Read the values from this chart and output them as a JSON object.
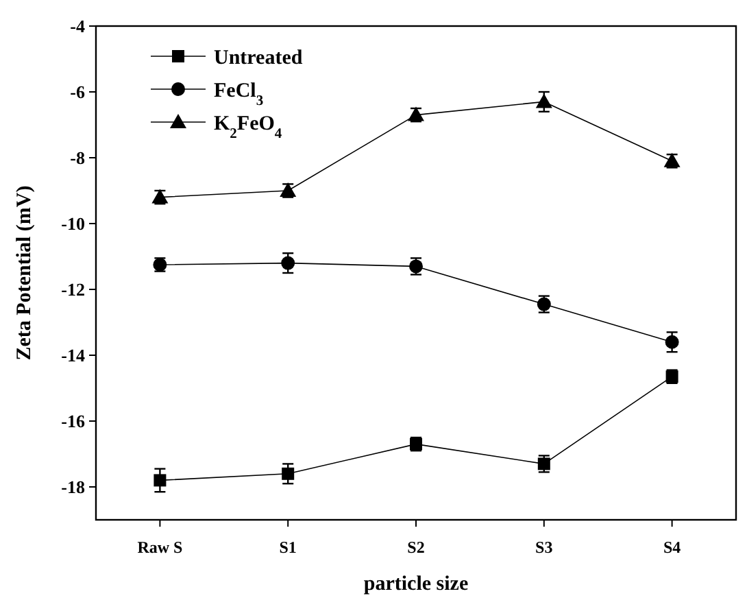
{
  "chart_data": {
    "type": "line",
    "xlabel": "particle size",
    "ylabel": "Zeta Potential (mV)",
    "categories": [
      "Raw S",
      "S1",
      "S2",
      "S3",
      "S4"
    ],
    "series": [
      {
        "name": "Untreated",
        "color": "#000000",
        "marker": "square",
        "values": [
          -17.8,
          -17.6,
          -16.7,
          -17.3,
          -14.65
        ],
        "errors": [
          0.35,
          0.3,
          0.2,
          0.25,
          0.2
        ]
      },
      {
        "name": "FeCl$_{3}$",
        "color": "#000000",
        "marker": "circle",
        "values": [
          -11.25,
          -11.2,
          -11.3,
          -12.45,
          -13.6
        ],
        "errors": [
          0.2,
          0.3,
          0.25,
          0.25,
          0.3
        ]
      },
      {
        "name": "K$_{2}$FeO$_{4}$",
        "color": "#000000",
        "marker": "triangle",
        "values": [
          -9.2,
          -9.0,
          -6.7,
          -6.3,
          -8.1
        ],
        "errors": [
          0.2,
          0.2,
          0.2,
          0.3,
          0.2
        ]
      }
    ],
    "ylim": [
      -19,
      -4
    ],
    "yticks": [
      -4,
      -6,
      -8,
      -10,
      -12,
      -14,
      -16,
      -18
    ],
    "grid": false,
    "legend": "top left",
    "line_style": "solid"
  }
}
